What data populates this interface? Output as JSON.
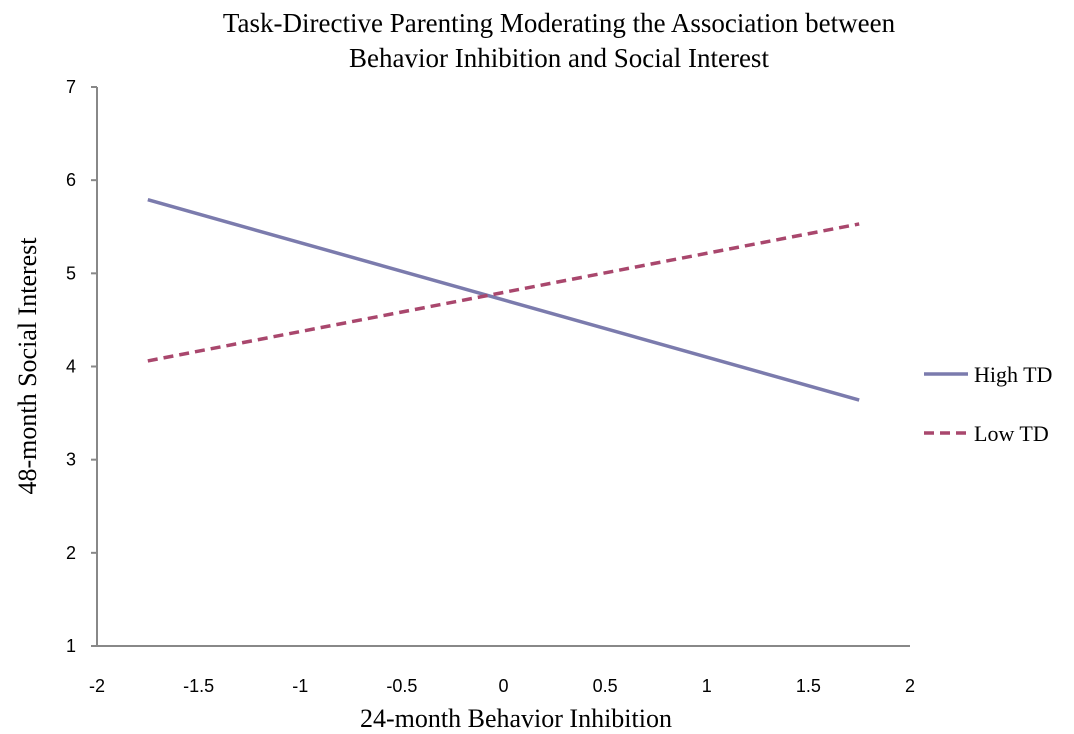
{
  "chart_data": {
    "type": "line",
    "title_lines": [
      "Task-Directive Parenting Moderating the Association between",
      "Behavior Inhibition and Social Interest"
    ],
    "xlabel": "24-month Behavior Inhibition",
    "ylabel": "48-month  Social Interest",
    "xlim": [
      -2,
      2
    ],
    "ylim": [
      1,
      7
    ],
    "x_ticks": [
      -2,
      -1.5,
      -1,
      -0.5,
      0,
      0.5,
      1,
      1.5,
      2
    ],
    "x_tick_labels": [
      "-2",
      "-1.5",
      "-1",
      "-0.5",
      "0",
      "0.5",
      "1",
      "1.5",
      "2"
    ],
    "y_ticks": [
      1,
      2,
      3,
      4,
      5,
      6,
      7
    ],
    "y_tick_labels": [
      "1",
      "2",
      "3",
      "4",
      "5",
      "6",
      "7"
    ],
    "grid": false,
    "legend_position": "right",
    "series": [
      {
        "name": "High TD",
        "x": [
          -1.75,
          1.75
        ],
        "y": [
          5.79,
          3.64
        ],
        "color": "#7b7bad",
        "dash": "solid"
      },
      {
        "name": "Low TD",
        "x": [
          -1.75,
          1.75
        ],
        "y": [
          4.06,
          5.53
        ],
        "color": "#a9476d",
        "dash": "dashed"
      }
    ]
  }
}
